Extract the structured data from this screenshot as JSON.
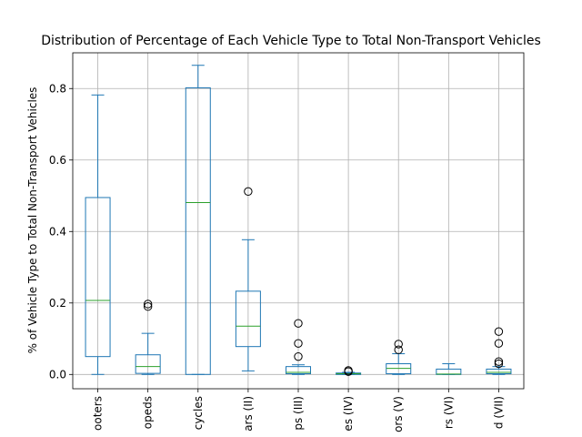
{
  "chart_data": {
    "type": "boxplot",
    "title": "Distribution of Percentage of Each Vehicle Type to Total Non-Transport Vehicles",
    "ylabel": "% of Vehicle Type to Total Non-Transport Vehicles",
    "xlabel": "",
    "ylim": [
      -0.04,
      0.9
    ],
    "yticks": [
      0.0,
      0.2,
      0.4,
      0.6,
      0.8
    ],
    "ytick_labels": [
      "0.0",
      "0.2",
      "0.4",
      "0.6",
      "0.8"
    ],
    "grid": true,
    "categories": [
      "Scooters",
      "Mopeds",
      "Motor Cycles",
      "Motor Cars (II)",
      "Jeeps (III)",
      "Omni Buses (IV)",
      "Tractors (V)",
      "Trailers (VI)",
      "Others Regd (VII)"
    ],
    "category_labels_visible": [
      "ooters",
      "opeds",
      "cycles",
      "ars (II)",
      "ps (III)",
      "es (IV)",
      "ors (V)",
      "rs (VI)",
      "d (VII)"
    ],
    "boxes": [
      {
        "whislo": 0.0,
        "q1": 0.05,
        "med": 0.207,
        "q3": 0.495,
        "whishi": 0.782,
        "fliers": []
      },
      {
        "whislo": 0.0,
        "q1": 0.003,
        "med": 0.022,
        "q3": 0.055,
        "whishi": 0.115,
        "fliers": [
          0.19,
          0.197
        ]
      },
      {
        "whislo": 0.0,
        "q1": 0.0,
        "med": 0.481,
        "q3": 0.802,
        "whishi": 0.865,
        "fliers": []
      },
      {
        "whislo": 0.01,
        "q1": 0.078,
        "med": 0.135,
        "q3": 0.233,
        "whishi": 0.377,
        "fliers": [
          0.512
        ]
      },
      {
        "whislo": 0.0,
        "q1": 0.002,
        "med": 0.006,
        "q3": 0.022,
        "whishi": 0.027,
        "fliers": [
          0.05,
          0.087,
          0.143
        ]
      },
      {
        "whislo": 0.0,
        "q1": 0.0,
        "med": 0.002,
        "q3": 0.004,
        "whishi": 0.006,
        "fliers": [
          0.008,
          0.011
        ]
      },
      {
        "whislo": 0.0,
        "q1": 0.002,
        "med": 0.017,
        "q3": 0.03,
        "whishi": 0.058,
        "fliers": [
          0.069,
          0.085
        ]
      },
      {
        "whislo": 0.0,
        "q1": 0.0,
        "med": 0.001,
        "q3": 0.015,
        "whishi": 0.03,
        "fliers": []
      },
      {
        "whislo": 0.0,
        "q1": 0.002,
        "med": 0.006,
        "q3": 0.015,
        "whishi": 0.022,
        "fliers": [
          0.03,
          0.036,
          0.087,
          0.12
        ]
      }
    ],
    "colors": {
      "box": "#1f77b4",
      "median": "#2ca02c",
      "flier": "#000000",
      "grid": "#b0b0b0"
    }
  }
}
